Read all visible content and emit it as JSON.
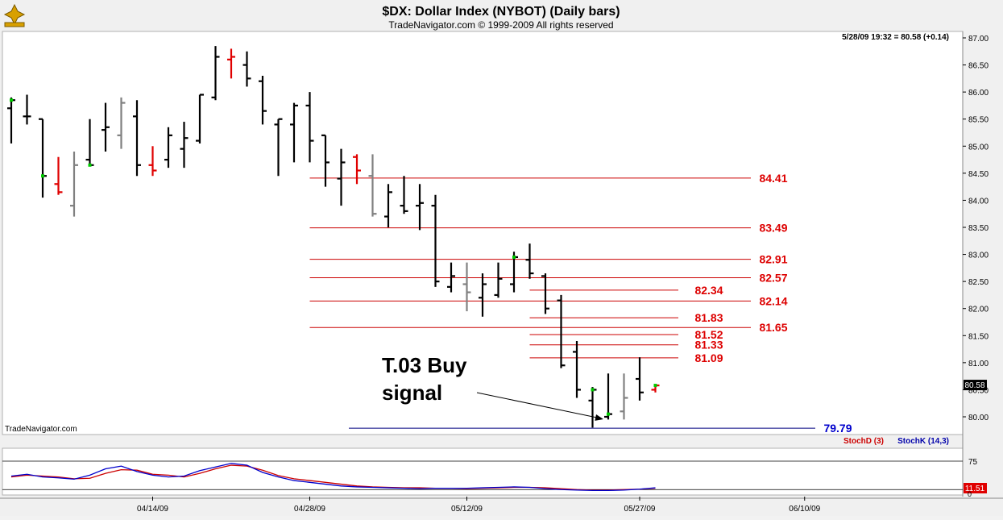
{
  "header": {
    "title": "$DX:  Dollar Index (NYBOT)  (Daily bars)",
    "copyright": "TradeNavigator.com © 1999-2009 All rights reserved",
    "quote": "5/28/09 19:32 = 80.58 (+0.14)",
    "watermark": "TradeNavigator.com",
    "last_price_tag": "80.58"
  },
  "colors": {
    "up_last": "#00cc00",
    "down_last": "#dd0000",
    "level_line": "#cc0000",
    "level_text": "#dd0000",
    "support_line": "#000080",
    "support_text": "#0000cc",
    "stoch_d": "#cc0000",
    "stoch_k": "#0000cc"
  },
  "chart_data": {
    "type": "ohlc",
    "ylim": [
      79.75,
      87.15
    ],
    "yticks": [
      "87.00",
      "86.50",
      "86.00",
      "85.50",
      "85.00",
      "84.50",
      "84.00",
      "83.50",
      "83.00",
      "82.50",
      "82.00",
      "81.50",
      "81.00",
      "80.50",
      "80.00"
    ],
    "xticks": [
      "04/14/09",
      "04/28/09",
      "05/12/09",
      "05/27/09",
      "06/10/09"
    ],
    "bars": [
      {
        "o": 85.7,
        "h": 85.9,
        "l": 85.05,
        "c": 85.85,
        "color": "black",
        "dot": "green"
      },
      {
        "o": 85.55,
        "h": 85.95,
        "l": 85.4,
        "c": 85.55,
        "color": "black"
      },
      {
        "o": 85.5,
        "h": 85.5,
        "l": 84.05,
        "c": 84.45,
        "color": "black",
        "dot": "green"
      },
      {
        "o": 84.3,
        "h": 84.8,
        "l": 84.1,
        "c": 84.15,
        "color": "red"
      },
      {
        "o": 83.9,
        "h": 84.9,
        "l": 83.7,
        "c": 84.65,
        "color": "gray"
      },
      {
        "o": 84.75,
        "h": 85.5,
        "l": 84.65,
        "c": 84.65,
        "color": "black",
        "dot": "green"
      },
      {
        "o": 85.3,
        "h": 85.8,
        "l": 84.9,
        "c": 85.35,
        "color": "black"
      },
      {
        "o": 85.2,
        "h": 85.9,
        "l": 84.95,
        "c": 85.8,
        "color": "gray"
      },
      {
        "o": 85.55,
        "h": 85.85,
        "l": 84.45,
        "c": 84.65,
        "color": "black"
      },
      {
        "o": 84.65,
        "h": 85.0,
        "l": 84.45,
        "c": 84.55,
        "color": "red"
      },
      {
        "o": 84.75,
        "h": 85.35,
        "l": 84.6,
        "c": 85.2,
        "color": "black"
      },
      {
        "o": 84.95,
        "h": 85.45,
        "l": 84.6,
        "c": 85.15,
        "color": "black"
      },
      {
        "o": 85.1,
        "h": 85.95,
        "l": 85.05,
        "c": 85.95,
        "color": "black"
      },
      {
        "o": 85.9,
        "h": 86.85,
        "l": 85.85,
        "c": 86.65,
        "color": "black"
      },
      {
        "o": 86.6,
        "h": 86.8,
        "l": 86.25,
        "c": 86.65,
        "color": "red"
      },
      {
        "o": 86.5,
        "h": 86.75,
        "l": 86.1,
        "c": 86.25,
        "color": "black"
      },
      {
        "o": 86.2,
        "h": 86.3,
        "l": 85.4,
        "c": 85.65,
        "color": "black"
      },
      {
        "o": 85.4,
        "h": 85.5,
        "l": 84.45,
        "c": 85.5,
        "color": "black"
      },
      {
        "o": 85.4,
        "h": 85.8,
        "l": 84.7,
        "c": 85.75,
        "color": "black"
      },
      {
        "o": 85.75,
        "h": 86.0,
        "l": 84.7,
        "c": 85.1,
        "color": "black"
      },
      {
        "o": 85.2,
        "h": 85.2,
        "l": 84.25,
        "c": 84.7,
        "color": "black"
      },
      {
        "o": 84.4,
        "h": 84.95,
        "l": 83.9,
        "c": 84.7,
        "color": "black"
      },
      {
        "o": 84.8,
        "h": 84.85,
        "l": 84.3,
        "c": 84.55,
        "color": "red"
      },
      {
        "o": 84.45,
        "h": 84.85,
        "l": 83.7,
        "c": 83.75,
        "color": "gray"
      },
      {
        "o": 83.7,
        "h": 84.3,
        "l": 83.5,
        "c": 84.15,
        "color": "black"
      },
      {
        "o": 83.9,
        "h": 84.45,
        "l": 83.75,
        "c": 83.8,
        "color": "black"
      },
      {
        "o": 83.9,
        "h": 84.3,
        "l": 83.45,
        "c": 83.95,
        "color": "black"
      },
      {
        "o": 83.9,
        "h": 84.1,
        "l": 82.4,
        "c": 82.5,
        "color": "black"
      },
      {
        "o": 82.4,
        "h": 82.85,
        "l": 82.3,
        "c": 82.6,
        "color": "black"
      },
      {
        "o": 82.45,
        "h": 82.85,
        "l": 81.95,
        "c": 82.3,
        "color": "gray"
      },
      {
        "o": 82.2,
        "h": 82.65,
        "l": 81.85,
        "c": 82.45,
        "color": "black"
      },
      {
        "o": 82.25,
        "h": 82.85,
        "l": 82.2,
        "c": 82.55,
        "color": "black"
      },
      {
        "o": 82.45,
        "h": 83.05,
        "l": 82.3,
        "c": 82.95,
        "color": "black",
        "dot": "green"
      },
      {
        "o": 82.9,
        "h": 83.2,
        "l": 82.55,
        "c": 82.65,
        "color": "black"
      },
      {
        "o": 82.6,
        "h": 82.65,
        "l": 81.9,
        "c": 82.0,
        "color": "black"
      },
      {
        "o": 82.15,
        "h": 82.25,
        "l": 80.9,
        "c": 80.95,
        "color": "black"
      },
      {
        "o": 81.2,
        "h": 81.4,
        "l": 80.35,
        "c": 80.5,
        "color": "black"
      },
      {
        "o": 80.3,
        "h": 80.55,
        "l": 79.8,
        "c": 80.5,
        "color": "black",
        "dot": "green"
      },
      {
        "o": 80.0,
        "h": 80.8,
        "l": 79.95,
        "c": 80.05,
        "color": "black",
        "dot": "green"
      },
      {
        "o": 80.1,
        "h": 80.8,
        "l": 79.95,
        "c": 80.35,
        "color": "gray"
      },
      {
        "o": 80.7,
        "h": 81.1,
        "l": 80.3,
        "c": 80.45,
        "color": "black"
      },
      {
        "o": 80.5,
        "h": 80.6,
        "l": 80.45,
        "c": 80.58,
        "color": "red",
        "dot": "green"
      }
    ],
    "levels": [
      {
        "value": 84.41,
        "label": "84.41",
        "from": 19
      },
      {
        "value": 83.49,
        "label": "83.49",
        "from": 19
      },
      {
        "value": 82.91,
        "label": "82.91",
        "from": 19
      },
      {
        "value": 82.57,
        "label": "82.57",
        "from": 19
      },
      {
        "value": 82.14,
        "label": "82.14",
        "from": 19
      },
      {
        "value": 81.65,
        "label": "81.65",
        "from": 19
      },
      {
        "value": 82.34,
        "label": "82.34",
        "from": 33
      },
      {
        "value": 81.83,
        "label": "81.83",
        "from": 33
      },
      {
        "value": 81.52,
        "label": "81.52",
        "from": 33
      },
      {
        "value": 81.33,
        "label": "81.33",
        "from": 33
      },
      {
        "value": 81.09,
        "label": "81.09",
        "from": 33
      }
    ],
    "support": {
      "value": 79.79,
      "label": "79.79"
    },
    "annotation": {
      "text_line1": "T.03 Buy",
      "text_line2": "signal",
      "target_bar": 37,
      "target_value": 79.95
    },
    "stoch": {
      "legend_d": "StochD (3)",
      "legend_k": "StochK (14,3)",
      "ylim": [
        0,
        100
      ],
      "yticks": [
        "75"
      ],
      "last_tag": "11.51",
      "level_high": 75,
      "level_low": 12,
      "d": [
        40,
        44,
        42,
        40,
        36,
        37,
        48,
        56,
        55,
        46,
        44,
        40,
        48,
        58,
        66,
        64,
        55,
        43,
        36,
        32,
        28,
        24,
        20,
        18,
        17,
        16,
        16,
        15,
        15,
        14,
        15,
        16,
        17,
        17,
        16,
        14,
        12,
        11,
        11,
        12,
        13,
        15
      ],
      "k": [
        42,
        46,
        40,
        38,
        35,
        44,
        58,
        64,
        52,
        44,
        40,
        42,
        54,
        62,
        70,
        66,
        50,
        40,
        32,
        28,
        24,
        20,
        18,
        17,
        16,
        15,
        14,
        15,
        15,
        15,
        16,
        17,
        18,
        17,
        14,
        12,
        11,
        10,
        10,
        11,
        13,
        16
      ]
    }
  }
}
